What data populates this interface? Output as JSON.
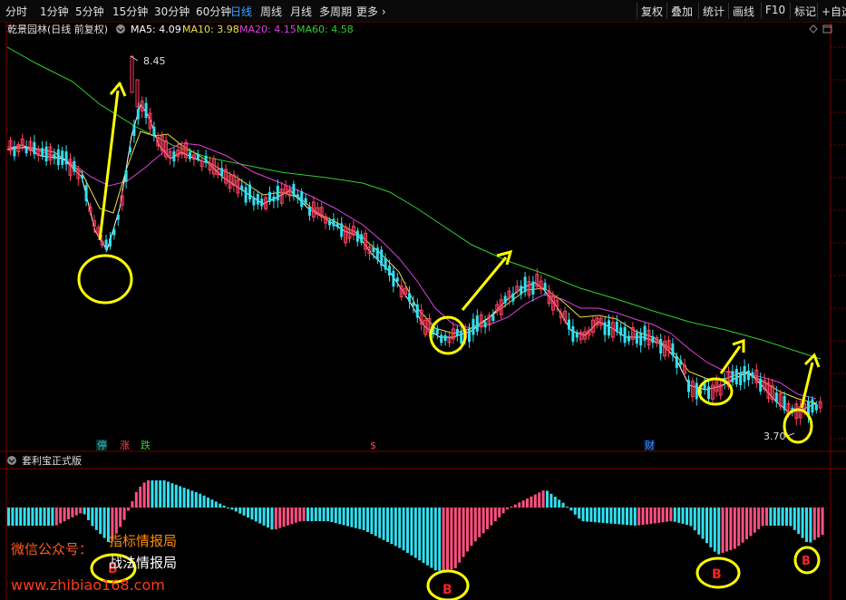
{
  "toolbar": {
    "periods": [
      "分时",
      "1分钟",
      "5分钟",
      "15分钟",
      "30分钟",
      "60分钟",
      "日线",
      "周线",
      "月线",
      "多周期",
      "更多"
    ],
    "active_period": "日线",
    "tools": [
      "复权",
      "叠加",
      "统计",
      "画线",
      "F10",
      "标记",
      "+自选"
    ]
  },
  "stock": {
    "title": "乾景园林(日线 前复权)",
    "ma": [
      {
        "label": "MA5: 4.09",
        "color": "#ffffff"
      },
      {
        "label": "MA10: 3.98",
        "color": "#f0e040"
      },
      {
        "label": "MA20: 4.15",
        "color": "#e040e0"
      },
      {
        "label": "MA60: 4.58",
        "color": "#30d030"
      }
    ]
  },
  "price_panel": {
    "high_label": "8.45",
    "low_label": "3.70",
    "event_markers": [
      {
        "text": "停",
        "color": "#30c0c0"
      },
      {
        "text": "涨",
        "color": "#ff4060"
      },
      {
        "text": "跌",
        "color": "#30d030"
      },
      {
        "text": "$",
        "color": "#ff4040"
      },
      {
        "text": "财",
        "color": "#4090ff"
      }
    ]
  },
  "indicator": {
    "title": "套利宝正式版",
    "buy_labels": [
      "B",
      "B",
      "B",
      "B"
    ]
  },
  "watermark": {
    "line1": "微信公众号：",
    "line1b": "指标情报局",
    "line2": "战法情报局",
    "url": "www.zhibiao168.com"
  },
  "chart_data": {
    "type": "candlestick",
    "title": "乾景园林(日线 前复权)",
    "ma_values": {
      "MA5": 4.09,
      "MA10": 3.98,
      "MA20": 4.15,
      "MA60": 4.58
    },
    "max_price": 8.45,
    "min_price": 3.7,
    "colors": {
      "up": "#ff4060",
      "down": "#30e0f0",
      "ma5": "#ffffff",
      "ma10": "#f0e040",
      "ma20": "#e040e0",
      "ma60": "#30d030"
    },
    "indicator_name": "套利宝正式版",
    "buy_signals": 4
  }
}
